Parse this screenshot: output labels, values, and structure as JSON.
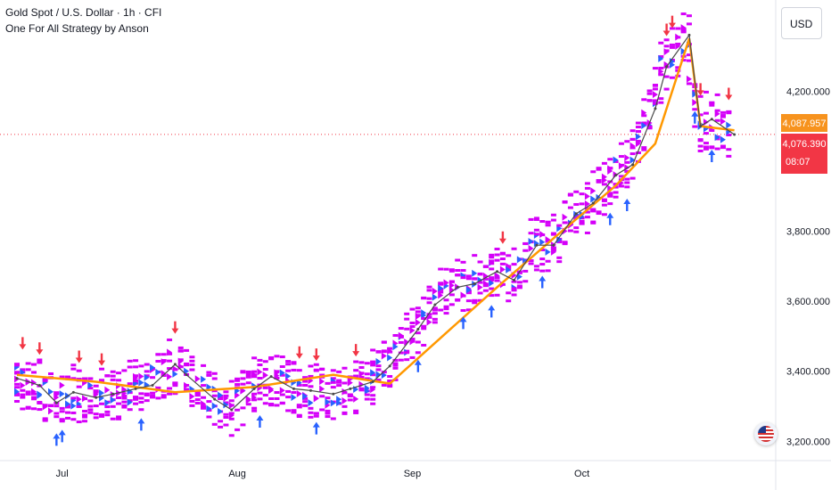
{
  "header": {
    "title": "Gold Spot / U.S. Dollar · 1h · CFI",
    "subtitle": "One For All Strategy by Anson",
    "currency": "USD"
  },
  "colors": {
    "background": "#ffffff",
    "buy_arrow": "#2962ff",
    "sell_arrow": "#f23645",
    "signal_magenta": "#d500f9",
    "baseline": "#ff9800",
    "price_line_dotted": "#f23645",
    "label_orange": "#f7931e",
    "label_red": "#f23645"
  },
  "icons": {
    "flag": "us-flag-icon"
  },
  "chart_data": {
    "type": "line",
    "symbol": "Gold Spot / U.S. Dollar",
    "interval": "1h",
    "x_labels": [
      "Jul",
      "Aug",
      "Sep",
      "Oct"
    ],
    "y_ticks": [
      "3,200.000",
      "3,400.000",
      "3,600.000",
      "3,800.000",
      "4,200.000"
    ],
    "ylim": [
      3150,
      4450
    ],
    "grid": false,
    "labels": {
      "baseline_value": "4,087.957",
      "last_price": "4,076.390",
      "countdown": "08:07"
    },
    "series": [
      {
        "role": "price",
        "x": [
          "2025-06-23",
          "2025-06-27",
          "2025-06-30",
          "2025-07-03",
          "2025-07-07",
          "2025-07-10",
          "2025-07-14",
          "2025-07-17",
          "2025-07-21",
          "2025-07-23",
          "2025-07-28",
          "2025-07-31",
          "2025-08-04",
          "2025-08-07",
          "2025-08-11",
          "2025-08-14",
          "2025-08-18",
          "2025-08-21",
          "2025-08-25",
          "2025-08-28",
          "2025-09-02",
          "2025-09-05",
          "2025-09-09",
          "2025-09-12",
          "2025-09-16",
          "2025-09-19",
          "2025-09-23",
          "2025-09-26",
          "2025-09-30",
          "2025-10-03",
          "2025-10-07",
          "2025-10-10",
          "2025-10-14",
          "2025-10-16",
          "2025-10-20",
          "2025-10-22",
          "2025-10-24",
          "2025-10-28"
        ],
        "values": [
          3380,
          3360,
          3310,
          3340,
          3325,
          3335,
          3350,
          3360,
          3420,
          3390,
          3320,
          3290,
          3350,
          3385,
          3350,
          3345,
          3335,
          3350,
          3370,
          3415,
          3520,
          3590,
          3640,
          3650,
          3685,
          3660,
          3760,
          3760,
          3850,
          3880,
          3960,
          3990,
          4150,
          4270,
          4360,
          4100,
          4120,
          4076
        ]
      },
      {
        "role": "baseline",
        "x": [
          "2025-06-23",
          "2025-07-07",
          "2025-07-21",
          "2025-08-04",
          "2025-08-18",
          "2025-08-28",
          "2025-09-16",
          "2025-09-26",
          "2025-10-07",
          "2025-10-14",
          "2025-10-20",
          "2025-10-22",
          "2025-10-28"
        ],
        "values": [
          3390,
          3370,
          3340,
          3355,
          3390,
          3365,
          3640,
          3780,
          3930,
          4050,
          4350,
          4100,
          4088
        ]
      }
    ],
    "signals": {
      "buy": [
        "2025-06-30",
        "2025-07-01",
        "2025-07-15",
        "2025-08-05",
        "2025-08-15",
        "2025-09-02",
        "2025-09-10",
        "2025-09-15",
        "2025-09-24",
        "2025-10-06",
        "2025-10-09",
        "2025-10-21",
        "2025-10-24"
      ],
      "sell": [
        "2025-06-24",
        "2025-06-27",
        "2025-07-04",
        "2025-07-08",
        "2025-07-21",
        "2025-08-12",
        "2025-08-15",
        "2025-08-22",
        "2025-09-17",
        "2025-10-16",
        "2025-10-17",
        "2025-10-22",
        "2025-10-27"
      ]
    }
  }
}
